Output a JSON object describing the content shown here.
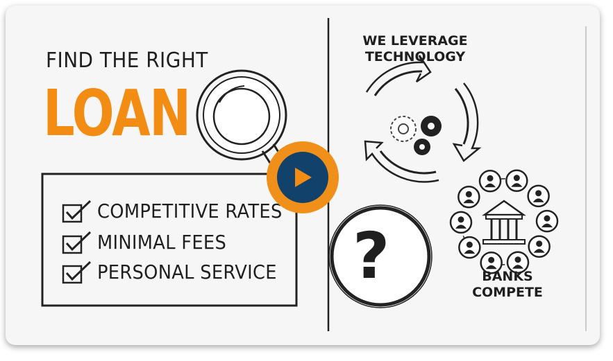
{
  "video": {
    "headline_top": "FIND THE RIGHT",
    "headline_main": "LOAN",
    "features": [
      {
        "label": "COMPETITIVE RATES"
      },
      {
        "label": "MINIMAL FEES"
      },
      {
        "label": "PERSONAL SERVICE"
      }
    ],
    "tech_line1": "WE LEVERAGE",
    "tech_line2": "TECHNOLOGY",
    "banks_line1": "BANKS",
    "banks_line2": "COMPETE",
    "question_mark": "?"
  },
  "colors": {
    "accent_orange": "#f28c12",
    "play_orange": "#f0901a",
    "play_navy": "#12426c",
    "ink": "#1f1f1f"
  },
  "icons": [
    "magnifier-icon",
    "checkbox-icon",
    "gears-cycle-icon",
    "question-icon",
    "bank-icon",
    "person-icon",
    "play-icon"
  ]
}
